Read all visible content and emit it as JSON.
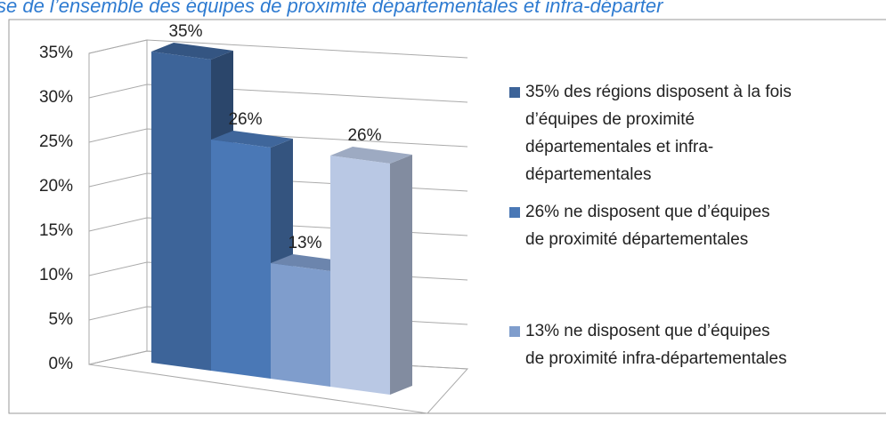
{
  "chart_data": {
    "type": "bar",
    "title": "se de l’ensemble des équipes de proximité départementales et infra-départer",
    "values": [
      35,
      26,
      13,
      26
    ],
    "value_labels": [
      "35%",
      "26%",
      "13%",
      "26%"
    ],
    "colors": [
      "#3d6499",
      "#4a78b6",
      "#7f9dcc",
      "#b9c8e4"
    ],
    "legend": [
      "35% des régions disposent à la fois d’équipes de proximité départementales et infra-départementales",
      "26% ne disposent que d’équipes de proximité départementales",
      "13% ne disposent que d’équipes de proximité infra-départementales"
    ],
    "ylim": [
      0,
      35
    ],
    "yticks": [
      {
        "value": 0,
        "label": "0%"
      },
      {
        "value": 5,
        "label": "5%"
      },
      {
        "value": 10,
        "label": "10%"
      },
      {
        "value": 15,
        "label": "15%"
      },
      {
        "value": 20,
        "label": "20%"
      },
      {
        "value": 25,
        "label": "25%"
      },
      {
        "value": 30,
        "label": "30%"
      },
      {
        "value": 35,
        "label": "35%"
      }
    ],
    "grid": true
  }
}
